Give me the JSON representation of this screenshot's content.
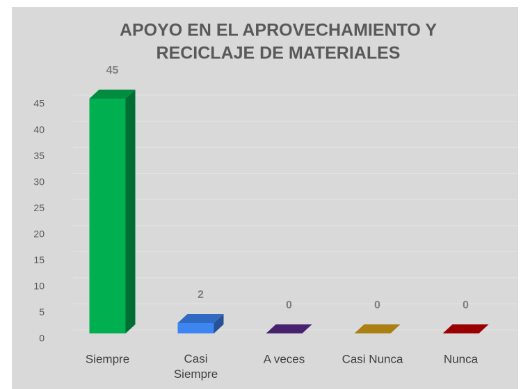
{
  "chart_data": {
    "type": "bar3d",
    "title": [
      "APOYO EN EL APROVECHAMIENTO Y",
      "RECICLAJE DE MATERIALES"
    ],
    "categories": [
      "Siempre",
      "Casi Siempre",
      "A veces",
      "Casi Nunca",
      "Nunca"
    ],
    "values": [
      45,
      2,
      0,
      0,
      0
    ],
    "colors": [
      "#00b050",
      "#3d85f0",
      "#5a2a8a",
      "#d4a017",
      "#c00000"
    ],
    "ylim": [
      0,
      45
    ],
    "yticks": [
      0,
      5,
      10,
      15,
      20,
      25,
      30,
      35,
      40,
      45
    ],
    "grid": true,
    "data_labels": true
  }
}
